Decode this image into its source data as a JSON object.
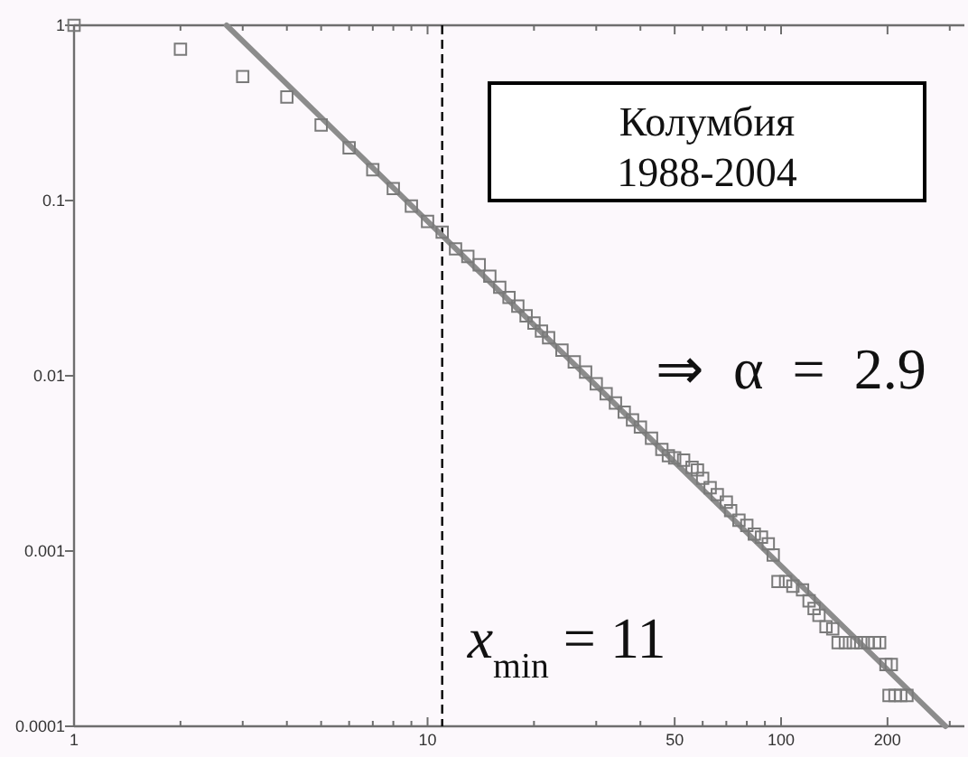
{
  "chart_data": {
    "type": "scatter",
    "xlim": [
      1,
      330
    ],
    "ylim": [
      0.0001,
      1
    ],
    "log": "xy",
    "xticks": [
      1,
      {
        "value": 2,
        "label": null
      },
      {
        "value": 3,
        "label": null
      },
      {
        "value": 4,
        "label": null
      },
      {
        "value": 5,
        "label": null
      },
      {
        "value": 6,
        "label": null
      },
      {
        "value": 7,
        "label": null
      },
      {
        "value": 8,
        "label": null
      },
      {
        "value": 9,
        "label": null
      },
      10,
      {
        "value": 20,
        "label": null
      },
      {
        "value": 30,
        "label": null
      },
      {
        "value": 40,
        "label": null
      },
      50,
      {
        "value": 60,
        "label": null
      },
      {
        "value": 70,
        "label": null
      },
      {
        "value": 80,
        "label": null
      },
      {
        "value": 90,
        "label": null
      },
      100,
      200,
      {
        "value": 300,
        "label": null
      }
    ],
    "yticks": [
      1,
      0.1,
      0.01,
      0.001,
      0.0001
    ],
    "series": [
      {
        "type": "line",
        "color": "#8c8c8c",
        "line_style": "solid",
        "x": [
          2.7,
          292
        ],
        "values": [
          1,
          0.0001
        ]
      },
      {
        "color": "#7a7a7a",
        "marker": "square",
        "x": [
          1,
          2,
          3,
          4,
          5,
          6,
          7,
          8,
          9,
          10,
          11,
          12,
          13,
          14,
          15,
          16,
          17,
          18,
          19,
          20,
          21,
          22,
          24,
          26,
          28,
          30,
          32,
          34,
          36,
          38,
          40,
          43,
          46,
          48,
          50,
          53,
          56,
          58,
          60,
          63,
          66,
          70,
          72,
          76,
          80,
          84,
          88,
          92,
          95,
          98,
          103,
          108,
          115,
          120,
          124,
          128,
          134,
          140,
          145,
          152,
          160,
          168,
          176,
          184,
          190,
          198,
          205,
          202,
          210,
          218,
          227
        ],
        "values": [
          1,
          0.73,
          0.51,
          0.39,
          0.27,
          0.2,
          0.15,
          0.117,
          0.093,
          0.076,
          0.066,
          0.053,
          0.048,
          0.043,
          0.037,
          0.032,
          0.028,
          0.025,
          0.022,
          0.02,
          0.018,
          0.0165,
          0.014,
          0.012,
          0.0105,
          0.009,
          0.0079,
          0.007,
          0.0062,
          0.0056,
          0.0051,
          0.0044,
          0.0038,
          0.0035,
          0.0034,
          0.0033,
          0.003,
          0.0029,
          0.0026,
          0.0023,
          0.0021,
          0.0019,
          0.0017,
          0.0015,
          0.0014,
          0.00125,
          0.0012,
          0.0011,
          0.00095,
          0.00067,
          0.00067,
          0.00063,
          0.0006,
          0.00052,
          0.00047,
          0.00043,
          0.00037,
          0.00036,
          0.0003,
          0.0003,
          0.0003,
          0.0003,
          0.0003,
          0.0003,
          0.0003,
          0.000225,
          0.000225,
          0.00015,
          0.00015,
          0.00015,
          0.00015
        ]
      }
    ],
    "ref_lines": [
      {
        "axis": "x",
        "value": 11,
        "label": "x$_{min}$ = 11",
        "color": "#000000",
        "line_style": "dashed"
      }
    ],
    "annotations": [
      "Колумбия 1988-2004",
      "⇒ α = 2.9"
    ]
  }
}
